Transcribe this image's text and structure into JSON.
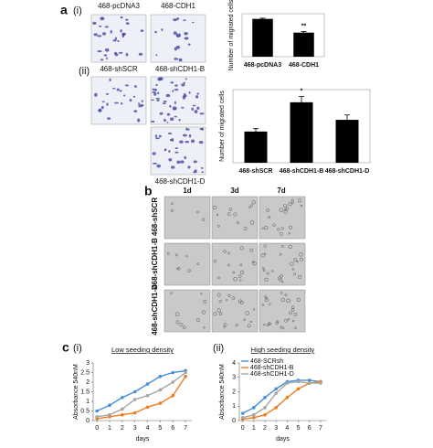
{
  "labels": {
    "a": "a",
    "a_i": "(i)",
    "a_ii": "(ii)",
    "b": "b",
    "c": "c",
    "c_i": "(i)",
    "c_ii": "(ii)"
  },
  "images": {
    "a_i": [
      "468-pcDNA3",
      "468-CDH1"
    ],
    "a_ii": [
      "468-shSCR",
      "468-shCDH1-B",
      "468-shCDH1-D"
    ],
    "b_columns": [
      "1d",
      "3d",
      "7d"
    ],
    "b_rows": [
      "468-shSCR",
      "468-shCDH1-B",
      "468-shCDH1-D"
    ]
  },
  "chart_data": [
    {
      "type": "bar",
      "y_label": "Number of migrated cells",
      "categories": [
        "468-pcDNA3",
        "468-CDH1"
      ],
      "values": [
        110,
        70
      ],
      "errors": [
        2,
        3
      ],
      "annotations": [
        null,
        "**"
      ],
      "color": "#000000",
      "ylim": [
        0,
        125
      ]
    },
    {
      "type": "bar",
      "y_label": "Number of migrated cells",
      "categories": [
        "468-shSCR",
        "468-shCDH1-B",
        "468-shCDH1-D"
      ],
      "values": [
        32,
        62,
        44
      ],
      "errors": [
        3,
        6,
        5
      ],
      "annotations": [
        null,
        "*",
        null
      ],
      "color": "#000000",
      "ylim": [
        0,
        75
      ]
    },
    {
      "type": "line",
      "title": "Low seeding density",
      "x_label": "days",
      "y_label": "Absorbance 540nM",
      "x": [
        0,
        1,
        2,
        3,
        4,
        5,
        6,
        7
      ],
      "xlim": [
        -0.3,
        7.5
      ],
      "xticks": [
        0,
        1,
        2,
        3,
        4,
        5,
        6,
        7
      ],
      "ylim": [
        0,
        3
      ],
      "yticks": [
        0,
        0.5,
        1,
        1.5,
        2,
        2.5,
        3
      ],
      "series": [
        {
          "color": "#4a8fd6",
          "values": [
            0.5,
            0.8,
            1.2,
            1.5,
            1.9,
            2.3,
            2.5,
            2.6
          ]
        },
        {
          "color": "#ee7d22",
          "values": [
            0.1,
            0.2,
            0.3,
            0.4,
            0.7,
            0.9,
            1.3,
            2.3
          ]
        },
        {
          "color": "#a5a5a5",
          "values": [
            0.2,
            0.3,
            0.6,
            1.1,
            1.3,
            1.6,
            2.0,
            2.5
          ]
        }
      ]
    },
    {
      "type": "line",
      "title": "High seeding density",
      "x_label": "days",
      "y_label": "Absorbance 540nM",
      "x": [
        0,
        1,
        2,
        3,
        4,
        5,
        6,
        7
      ],
      "xlim": [
        -0.3,
        7.5
      ],
      "xticks": [
        0,
        1,
        2,
        3,
        4,
        5,
        6,
        7
      ],
      "ylim": [
        0,
        4
      ],
      "yticks": [
        0,
        1,
        2,
        3,
        4
      ],
      "series": [
        {
          "name": "468-SCRsh",
          "color": "#4a8fd6",
          "values": [
            0.5,
            0.9,
            1.6,
            2.2,
            2.7,
            2.8,
            2.8,
            2.7
          ]
        },
        {
          "name": "468-shCDH1-B",
          "color": "#ee7d22",
          "values": [
            0.1,
            0.2,
            0.4,
            0.9,
            1.6,
            2.2,
            2.6,
            2.7
          ]
        },
        {
          "name": "468-shCDH1-D",
          "color": "#a5a5a5",
          "values": [
            0.2,
            0.4,
            0.9,
            1.9,
            2.6,
            2.7,
            2.6,
            2.6
          ]
        }
      ]
    }
  ]
}
